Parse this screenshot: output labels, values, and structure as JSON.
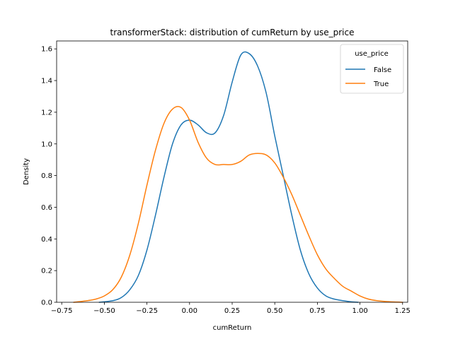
{
  "chart_data": {
    "type": "line",
    "title": "transformerStack: distribution of cumReturn by use_price",
    "xlabel": "cumReturn",
    "ylabel": "Density",
    "xlim": [
      -0.78,
      1.28
    ],
    "ylim": [
      0,
      1.65
    ],
    "xticks": [
      "−0.75",
      "−0.50",
      "−0.25",
      "0.00",
      "0.25",
      "0.50",
      "0.75",
      "1.00",
      "1.25"
    ],
    "yticks": [
      "0.0",
      "0.2",
      "0.4",
      "0.6",
      "0.8",
      "1.0",
      "1.2",
      "1.4",
      "1.6"
    ],
    "grid": false,
    "legend": {
      "title": "use_price",
      "placement": "top-right"
    },
    "series": [
      {
        "name": "False",
        "color": "#1f77b4",
        "x": [
          -0.53,
          -0.45,
          -0.4,
          -0.35,
          -0.3,
          -0.25,
          -0.2,
          -0.15,
          -0.1,
          -0.05,
          0.0,
          0.05,
          0.1,
          0.15,
          0.2,
          0.25,
          0.3,
          0.35,
          0.4,
          0.45,
          0.5,
          0.55,
          0.6,
          0.65,
          0.7,
          0.75,
          0.8,
          0.85,
          0.9,
          0.95,
          0.99
        ],
        "y": [
          0.0,
          0.01,
          0.03,
          0.08,
          0.17,
          0.33,
          0.55,
          0.79,
          1.0,
          1.12,
          1.15,
          1.12,
          1.07,
          1.07,
          1.18,
          1.39,
          1.56,
          1.57,
          1.49,
          1.32,
          1.05,
          0.8,
          0.55,
          0.33,
          0.18,
          0.09,
          0.04,
          0.02,
          0.01,
          0.003,
          0.0
        ]
      },
      {
        "name": "True",
        "color": "#ff7f0e",
        "x": [
          -0.68,
          -0.6,
          -0.55,
          -0.5,
          -0.45,
          -0.4,
          -0.35,
          -0.3,
          -0.25,
          -0.2,
          -0.15,
          -0.1,
          -0.05,
          0.0,
          0.05,
          0.1,
          0.15,
          0.2,
          0.25,
          0.3,
          0.35,
          0.4,
          0.45,
          0.5,
          0.55,
          0.6,
          0.65,
          0.7,
          0.75,
          0.8,
          0.85,
          0.9,
          0.95,
          1.0,
          1.05,
          1.1,
          1.15,
          1.2,
          1.25
        ],
        "y": [
          0.0,
          0.01,
          0.02,
          0.04,
          0.08,
          0.16,
          0.3,
          0.5,
          0.74,
          0.96,
          1.13,
          1.22,
          1.23,
          1.15,
          1.01,
          0.91,
          0.87,
          0.87,
          0.87,
          0.89,
          0.93,
          0.94,
          0.93,
          0.88,
          0.79,
          0.68,
          0.55,
          0.42,
          0.3,
          0.21,
          0.15,
          0.1,
          0.07,
          0.04,
          0.02,
          0.01,
          0.005,
          0.002,
          0.0
        ]
      }
    ]
  }
}
